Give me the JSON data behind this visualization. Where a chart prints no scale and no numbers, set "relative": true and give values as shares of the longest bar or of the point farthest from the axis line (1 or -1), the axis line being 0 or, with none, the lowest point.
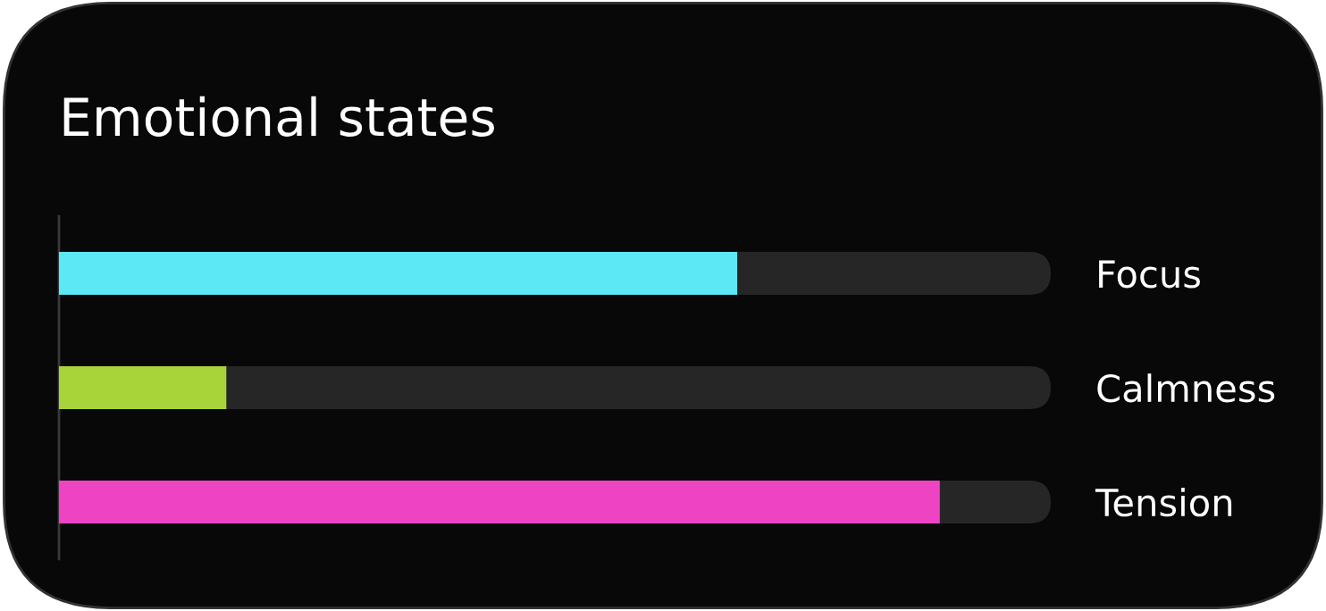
{
  "chart_data": {
    "type": "bar",
    "orientation": "horizontal",
    "relative": true,
    "title": "Emotional states",
    "categories": [
      "Focus",
      "Calmness",
      "Tension"
    ],
    "values": [
      0.77,
      0.19,
      1
    ],
    "colors": [
      "#5ce8f5",
      "#a8d43a",
      "#ee44c4"
    ]
  }
}
